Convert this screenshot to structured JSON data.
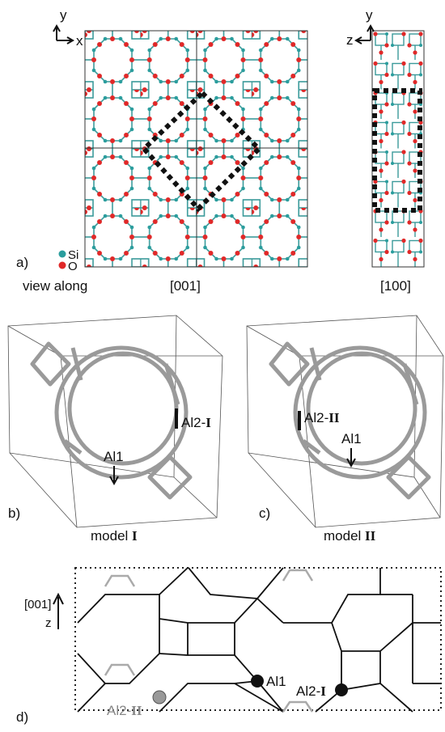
{
  "panel_a": {
    "label": "a)",
    "view_001": {
      "axis_y": "y",
      "axis_x": "x"
    },
    "view_100": {
      "axis_z": "z",
      "axis_y": "y"
    },
    "legend": [
      "Si",
      "O"
    ],
    "caption_prefix": "view along",
    "caption_001": "[001]",
    "caption_100": "[100]"
  },
  "panel_b": {
    "label": "b)",
    "model_prefix": "model",
    "model_numeral": "I",
    "site_al1": "Al1",
    "site_al2_prefix": "Al2-",
    "site_al2_numeral": "I"
  },
  "panel_c": {
    "label": "c)",
    "model_prefix": "model",
    "model_numeral": "II",
    "site_al1": "Al1",
    "site_al2_prefix": "Al2-",
    "site_al2_numeral": "II"
  },
  "panel_d": {
    "label": "d)",
    "axis_direction": "[001]",
    "axis_z": "z",
    "site_al2_ii": {
      "prefix": "Al2-",
      "numeral": "II"
    },
    "site_al1": "Al1",
    "site_al2_i": {
      "prefix": "Al2-",
      "numeral": "I"
    }
  }
}
